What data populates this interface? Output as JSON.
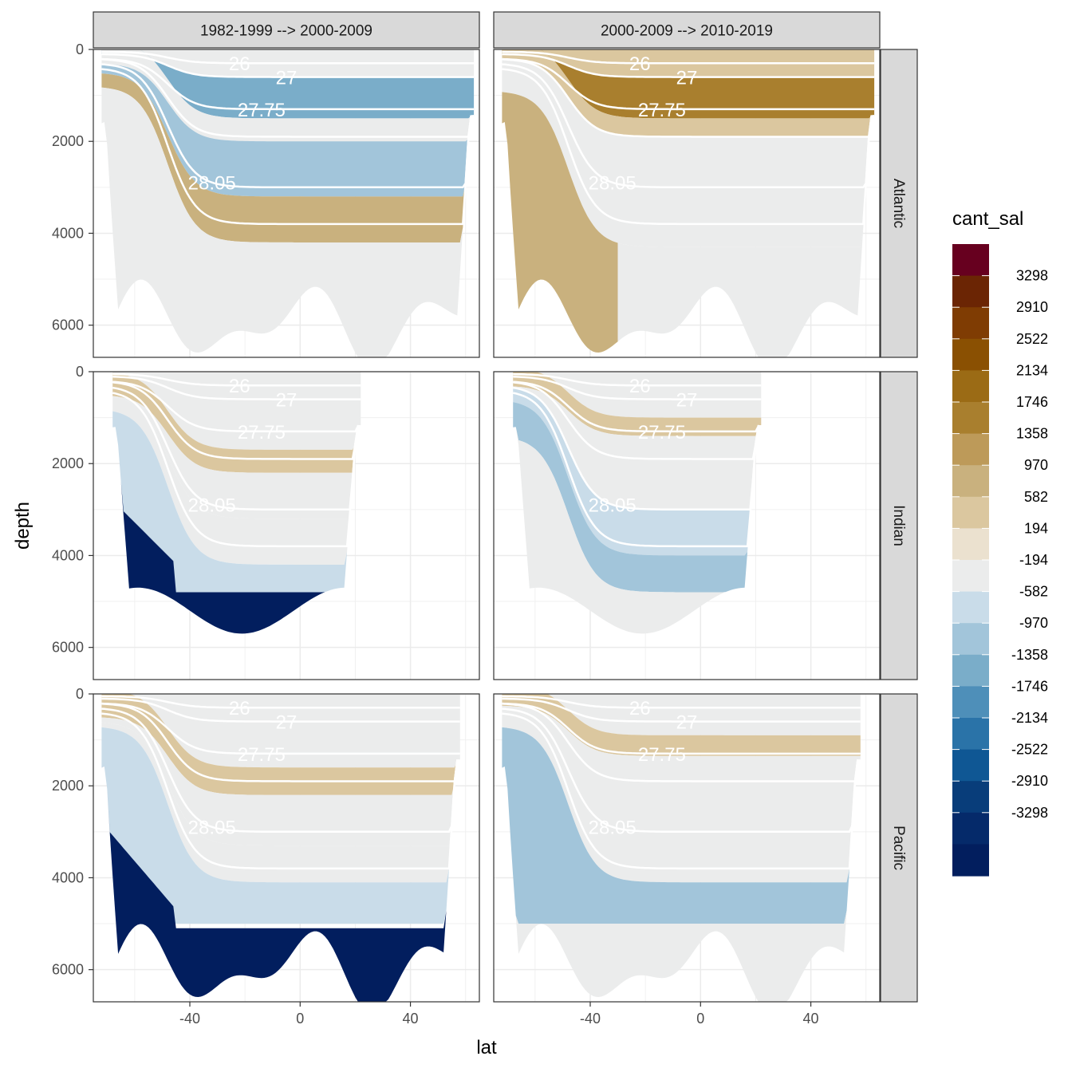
{
  "chart_data": {
    "type": "heatmap",
    "subtype": "faceted filled-contour ocean sections",
    "xlabel": "lat",
    "ylabel": "depth",
    "y_reversed": true,
    "xlim": [
      -75,
      65
    ],
    "ylim": [
      6700,
      0
    ],
    "x_ticks": [
      -40,
      0,
      40
    ],
    "y_ticks": [
      0,
      2000,
      4000,
      6000
    ],
    "grid": true,
    "facet_columns": [
      "1982-1999 --> 2000-2009",
      "2000-2009 --> 2010-2019"
    ],
    "facet_rows": [
      "Atlantic",
      "Indian",
      "Pacific"
    ],
    "legend": {
      "title": "cant_sal",
      "position": "right",
      "breaks": [
        3298,
        2910,
        2522,
        2134,
        1746,
        1358,
        970,
        582,
        194,
        -194,
        -582,
        -970,
        -1358,
        -1746,
        -2134,
        -2522,
        -2910,
        -3298
      ],
      "colors": [
        "#67001f",
        "#6b2504",
        "#7f3c03",
        "#8a5002",
        "#9b6b15",
        "#a97f2e",
        "#bd9a59",
        "#c9b17e",
        "#dbc79f",
        "#ebe1cf",
        "#ebecec",
        "#c9dce9",
        "#a2c5da",
        "#7aadc9",
        "#4e8fb9",
        "#2a73a8",
        "#0f5794",
        "#083d7a",
        "#052a6a",
        "#021e5e"
      ]
    },
    "isopycnal_labels": [
      "26",
      "27",
      "27.75",
      "28.05"
    ],
    "panels": [
      {
        "basin": "Atlantic",
        "period": "1982-1999 --> 2000-2009",
        "surface_layer": "-194 to -970",
        "upper_band": -1358,
        "upper_band_depth_range": [
          800,
          1500
        ],
        "intermediate": -970,
        "intermediate_depth_range": [
          2200,
          3200
        ],
        "deep_band": 970,
        "deep_band_depth_range": [
          3500,
          4300
        ],
        "south_deep": -194
      },
      {
        "basin": "Atlantic",
        "period": "2000-2009 --> 2010-2019",
        "surface_layer": "194 to 970",
        "upper_band": 1358,
        "upper_band_depth_range": [
          800,
          1500
        ],
        "intermediate": 0,
        "intermediate_depth_range": [
          2000,
          3500
        ],
        "deep_band": 0,
        "south_deep": 582
      },
      {
        "basin": "Indian",
        "period": "1982-1999 --> 2000-2009",
        "upper_band": 582,
        "upper_band_depth_range": [
          1500,
          2000
        ],
        "intermediate": -194,
        "deep_band": -970,
        "south_deep": -3298,
        "south_deep_depth_range": [
          2500,
          6000
        ]
      },
      {
        "basin": "Indian",
        "period": "2000-2009 --> 2010-2019",
        "upper_band": 194,
        "upper_band_depth_range": [
          700,
          1100
        ],
        "intermediate": -582,
        "deep_band": -1358,
        "south_deep": -970
      },
      {
        "basin": "Pacific",
        "period": "1982-1999 --> 2000-2009",
        "upper_band": 582,
        "upper_band_depth_range": [
          1600,
          2200
        ],
        "intermediate": 0,
        "deep_band": -970,
        "south_deep": -3298,
        "south_deep_depth_range": [
          4500,
          6700
        ]
      },
      {
        "basin": "Pacific",
        "period": "2000-2009 --> 2010-2019",
        "upper_band": 194,
        "upper_band_depth_range": [
          600,
          1000
        ],
        "intermediate": -194,
        "deep_band": -970,
        "south_deep": -582
      }
    ]
  }
}
